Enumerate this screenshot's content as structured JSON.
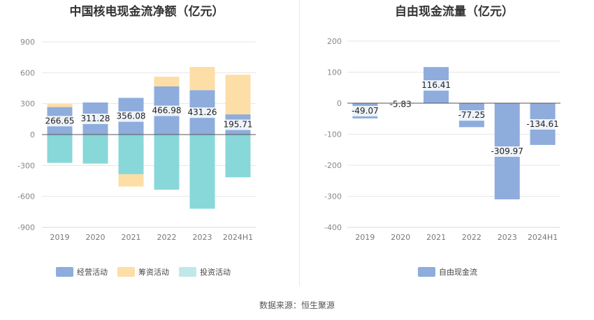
{
  "left_title": "中国核电现金流净额（亿元）",
  "right_title": "自由现金流量（亿元）",
  "source_text": "数据来源：恒生聚源",
  "colors": {
    "operating": "#8eacdc",
    "financing": "#fddea6",
    "investing": "#88d7d9",
    "fcf": "#8eacdc",
    "legend_investing": "#bfe8ea"
  },
  "chart_data": [
    {
      "type": "bar",
      "title": "中国核电现金流净额（亿元）",
      "categories": [
        "2019",
        "2020",
        "2021",
        "2022",
        "2023",
        "2024H1"
      ],
      "ylim": [
        -900,
        900
      ],
      "yticks": [
        "900",
        "600",
        "300",
        "0",
        "-300",
        "-600",
        "-900"
      ],
      "stacked": true,
      "series": [
        {
          "name": "经营活动",
          "values": [
            266.65,
            311.28,
            356.08,
            466.98,
            431.26,
            195.71
          ]
        },
        {
          "name": "筹资活动",
          "values": [
            30,
            -5,
            -120,
            95,
            225,
            385
          ]
        },
        {
          "name": "投资活动",
          "values": [
            -275,
            -280,
            -385,
            -535,
            -720,
            -415
          ]
        }
      ],
      "data_labels": [
        "266.65",
        "311.28",
        "356.08",
        "466.98",
        "431.26",
        "195.71"
      ],
      "legend_position": "bottom",
      "grid": true
    },
    {
      "type": "bar",
      "title": "自由现金流量（亿元）",
      "categories": [
        "2019",
        "2020",
        "2021",
        "2022",
        "2023",
        "2024H1"
      ],
      "ylim": [
        -400,
        200
      ],
      "yticks": [
        "200",
        "100",
        "0",
        "-100",
        "-200",
        "-300",
        "-400"
      ],
      "series": [
        {
          "name": "自由现金流",
          "values": [
            -49.07,
            -5.83,
            116.41,
            -77.25,
            -309.97,
            -134.61
          ]
        }
      ],
      "data_labels": [
        "-49.07",
        "-5.83",
        "116.41",
        "-77.25",
        "-309.97",
        "-134.61"
      ],
      "legend_position": "bottom",
      "grid": true
    }
  ]
}
